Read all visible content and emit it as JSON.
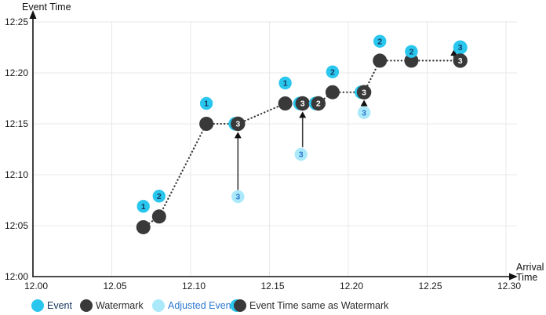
{
  "axes": {
    "y_title": "Event Time",
    "x_title_lines": [
      "Arrival",
      "Time"
    ],
    "y_ticks": [
      {
        "label": "12:00",
        "m": 0
      },
      {
        "label": "12:05",
        "m": 5
      },
      {
        "label": "12:10",
        "m": 10
      },
      {
        "label": "12:15",
        "m": 15
      },
      {
        "label": "12:20",
        "m": 20
      },
      {
        "label": "12:25",
        "m": 25
      }
    ],
    "x_ticks": [
      {
        "label": "12.00",
        "t": 12.0
      },
      {
        "label": "12.05",
        "t": 12.05
      },
      {
        "label": "12.10",
        "t": 12.1
      },
      {
        "label": "12.15",
        "t": 12.15
      },
      {
        "label": "12.20",
        "t": 12.2
      },
      {
        "label": "12.25",
        "t": 12.25
      },
      {
        "label": "12.30",
        "t": 12.3
      }
    ]
  },
  "colors": {
    "event": "#29C6EE",
    "event_number": "#17375E",
    "watermark": "#3A3939",
    "adjusted": "#A9E9FA",
    "adjusted_number": "#2E77D0",
    "same_number": "#FFFFFF",
    "grid": "#E8E8E8",
    "axis": "#111111",
    "dotted_line": "#3A3939",
    "arrow": "#3D3D3D",
    "tick_text": "#1A1A1A",
    "legend_event_text": "#17375E",
    "legend_dark_text": "#2B2B2B",
    "legend_adjusted_text": "#2E77D0"
  },
  "chart_data": {
    "type": "scatter",
    "x_axis_label": "Arrival Time",
    "y_axis_label": "Event Time",
    "x_range": [
      12.0,
      12.3
    ],
    "y_range_minutes_after_12": [
      0,
      25
    ],
    "grid": true,
    "legend_position": "bottom",
    "watermark_line": [
      [
        12.07,
        4.85
      ],
      [
        12.08,
        5.9
      ],
      [
        12.11,
        15
      ],
      [
        12.13,
        15
      ],
      [
        12.16,
        17
      ],
      [
        12.171,
        17
      ],
      [
        12.181,
        17
      ],
      [
        12.19,
        18.1
      ],
      [
        12.21,
        18.1
      ],
      [
        12.22,
        21.2
      ],
      [
        12.24,
        21.2
      ],
      [
        12.271,
        21.2
      ]
    ],
    "watermarks": [
      {
        "x": 12.07,
        "m": 4.85
      },
      {
        "x": 12.08,
        "m": 5.9
      },
      {
        "x": 12.11,
        "m": 15
      },
      {
        "x": 12.16,
        "m": 17
      },
      {
        "x": 12.19,
        "m": 18.1
      },
      {
        "x": 12.22,
        "m": 21.2
      },
      {
        "x": 12.24,
        "m": 21.2
      }
    ],
    "events": [
      {
        "x": 12.07,
        "m": 6.9,
        "label": "1"
      },
      {
        "x": 12.08,
        "m": 7.9,
        "label": "2"
      },
      {
        "x": 12.11,
        "m": 17,
        "label": "1"
      },
      {
        "x": 12.16,
        "m": 19,
        "label": "1"
      },
      {
        "x": 12.19,
        "m": 20.1,
        "label": "2"
      },
      {
        "x": 12.22,
        "m": 23.1,
        "label": "2"
      },
      {
        "x": 12.24,
        "m": 22.1,
        "label": "2"
      },
      {
        "x": 12.271,
        "m": 22.5,
        "label": "3"
      }
    ],
    "adjusted_events": [
      {
        "x": 12.13,
        "m": 7.85,
        "label": "3"
      },
      {
        "x": 12.17,
        "m": 12,
        "label": "3"
      },
      {
        "x": 12.21,
        "m": 16.1,
        "label": "3"
      }
    ],
    "same_as_watermark": [
      {
        "x": 12.13,
        "m": 15,
        "label": "3",
        "sliver": "left"
      },
      {
        "x": 12.171,
        "m": 17,
        "label": "3",
        "sliver": "left"
      },
      {
        "x": 12.181,
        "m": 17,
        "label": "2",
        "sliver": "left"
      },
      {
        "x": 12.21,
        "m": 18.1,
        "label": "3",
        "sliver": "left"
      },
      {
        "x": 12.271,
        "m": 21.2,
        "label": "3",
        "sliver": "none"
      }
    ],
    "arrows": [
      {
        "x": 12.13,
        "from_m": 8.5,
        "to_m": 14.2
      },
      {
        "x": 12.171,
        "from_m": 12.7,
        "to_m": 16.2
      },
      {
        "x": 12.21,
        "from_m": 16.7,
        "to_m": 17.35
      },
      {
        "x": 12.267,
        "from_m": 21.2,
        "to_m": 22.3
      }
    ],
    "legend": [
      {
        "type": "event",
        "label": "Event"
      },
      {
        "type": "watermark",
        "label": "Watermark"
      },
      {
        "type": "adjusted",
        "label": "Adjusted Event"
      },
      {
        "type": "same",
        "label": "Event Time same as Watermark"
      }
    ]
  }
}
